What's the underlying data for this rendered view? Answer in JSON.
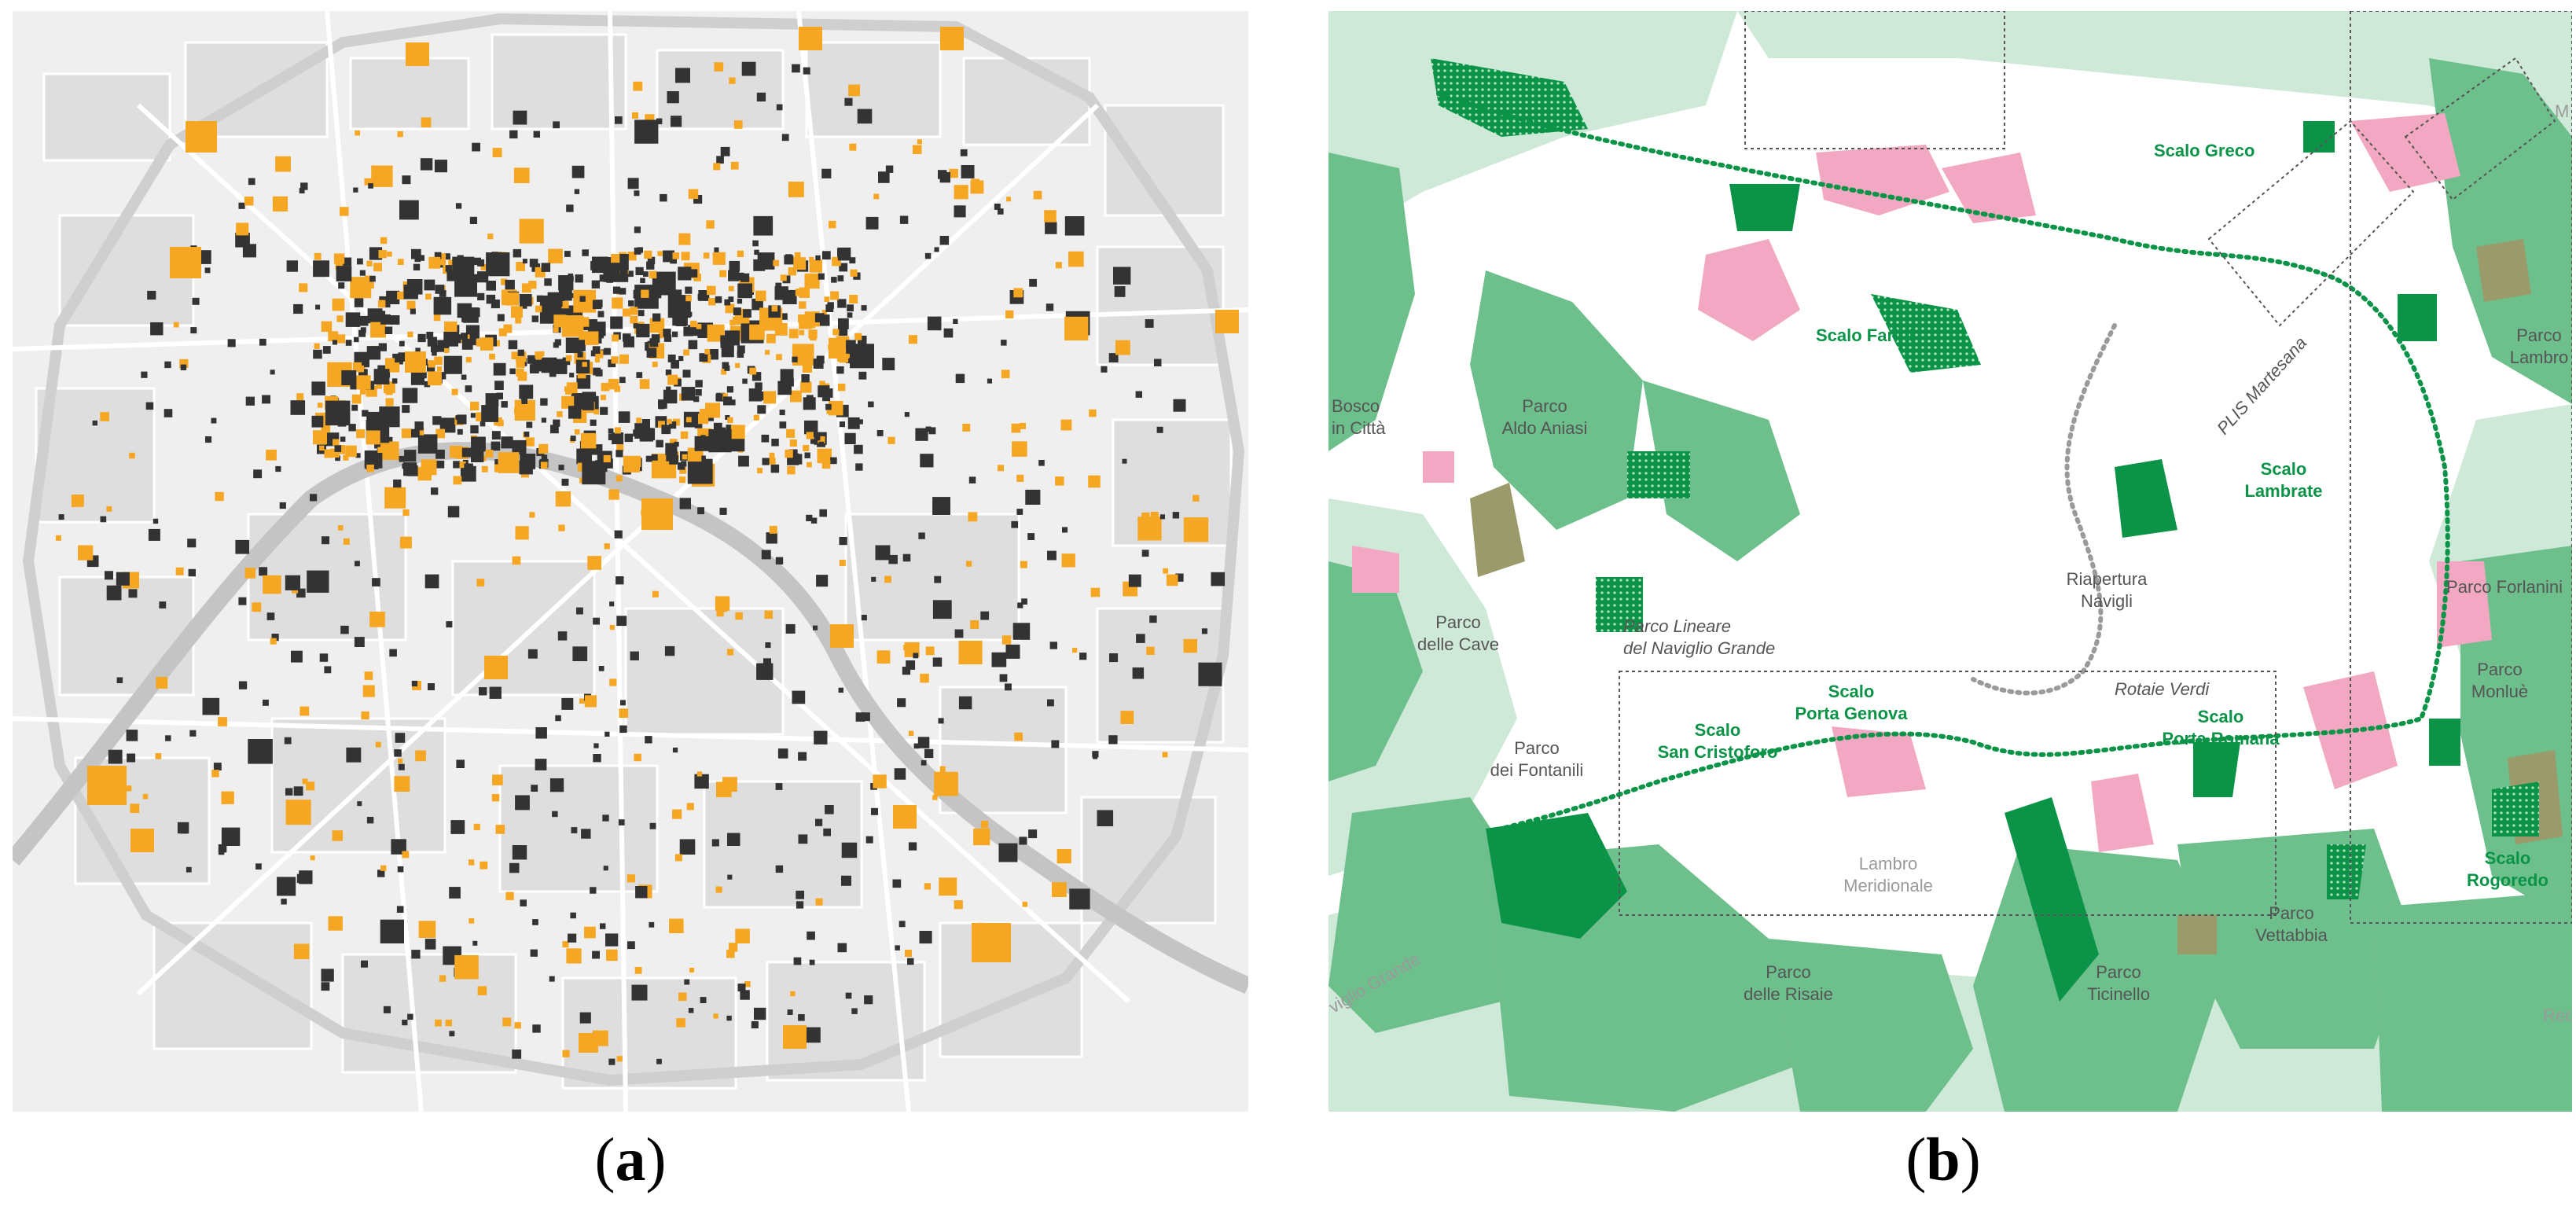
{
  "panels": [
    {
      "id": "a",
      "caption_letter": "a"
    },
    {
      "id": "b",
      "caption_letter": "b"
    }
  ],
  "colors": {
    "map_a_background": "#efefef",
    "map_a_block": "#dddddd",
    "map_a_street": "#ffffff",
    "map_a_river": "#c9c9c9",
    "marker_orange": "#f5a623",
    "marker_dark": "#333333",
    "map_b_background": "#ffffff",
    "green_dark": "#0b9447",
    "green_mid": "#6dbf8c",
    "green_light": "#cfe9d8",
    "pink": "#f2a7c3",
    "olive": "#9a9a6a",
    "label_green": "#0b9447",
    "label_dark": "#555555"
  },
  "map_b_labels": {
    "scalo_greco": "Scalo Greco",
    "scalo_farini": "Scalo Farini",
    "plis_martesana": "PLIS Martesana",
    "scalo_lambrate_1": "Scalo",
    "scalo_lambrate_2": "Lambrate",
    "parco_lambro_1": "Parco",
    "parco_lambro_2": "Lambro",
    "bosco_1": "Bosco",
    "bosco_2": "in Città",
    "aldo_aniasi_1": "Parco",
    "aldo_aniasi_2": "Aldo Aniasi",
    "parco_forlanini": "Parco Forlanini",
    "riapertura_1": "Riapertura",
    "riapertura_2": "Navigli",
    "parco_cave_1": "Parco",
    "parco_cave_2": "delle Cave",
    "lineare_1": "Parco Lineare",
    "lineare_2": "del Naviglio Grande",
    "rotaie_verdi": "Rotaie Verdi",
    "monlue_1": "Parco",
    "monlue_2": "Monluè",
    "genova_1": "Scalo",
    "genova_2": "Porta Genova",
    "cristoforo_1": "Scalo",
    "cristoforo_2": "San Cristoforo",
    "romana_1": "Scalo",
    "romana_2": "Porta Romana",
    "fontanili_1": "Parco",
    "fontanili_2": "dei Fontanili",
    "lambro_merid_1": "Lambro",
    "lambro_merid_2": "Meridionale",
    "vettabbia_1": "Parco",
    "vettabbia_2": "Vettabbia",
    "rogoredo_1": "Scalo",
    "rogoredo_2": "Rogoredo",
    "risaie_1": "Parco",
    "risaie_2": "delle Risaie",
    "ticinello_1": "Parco",
    "ticinello_2": "Ticinello",
    "naviglio_grande_edge": "viglio Grande",
    "rede_edge": "Red",
    "m_edge": "M"
  }
}
